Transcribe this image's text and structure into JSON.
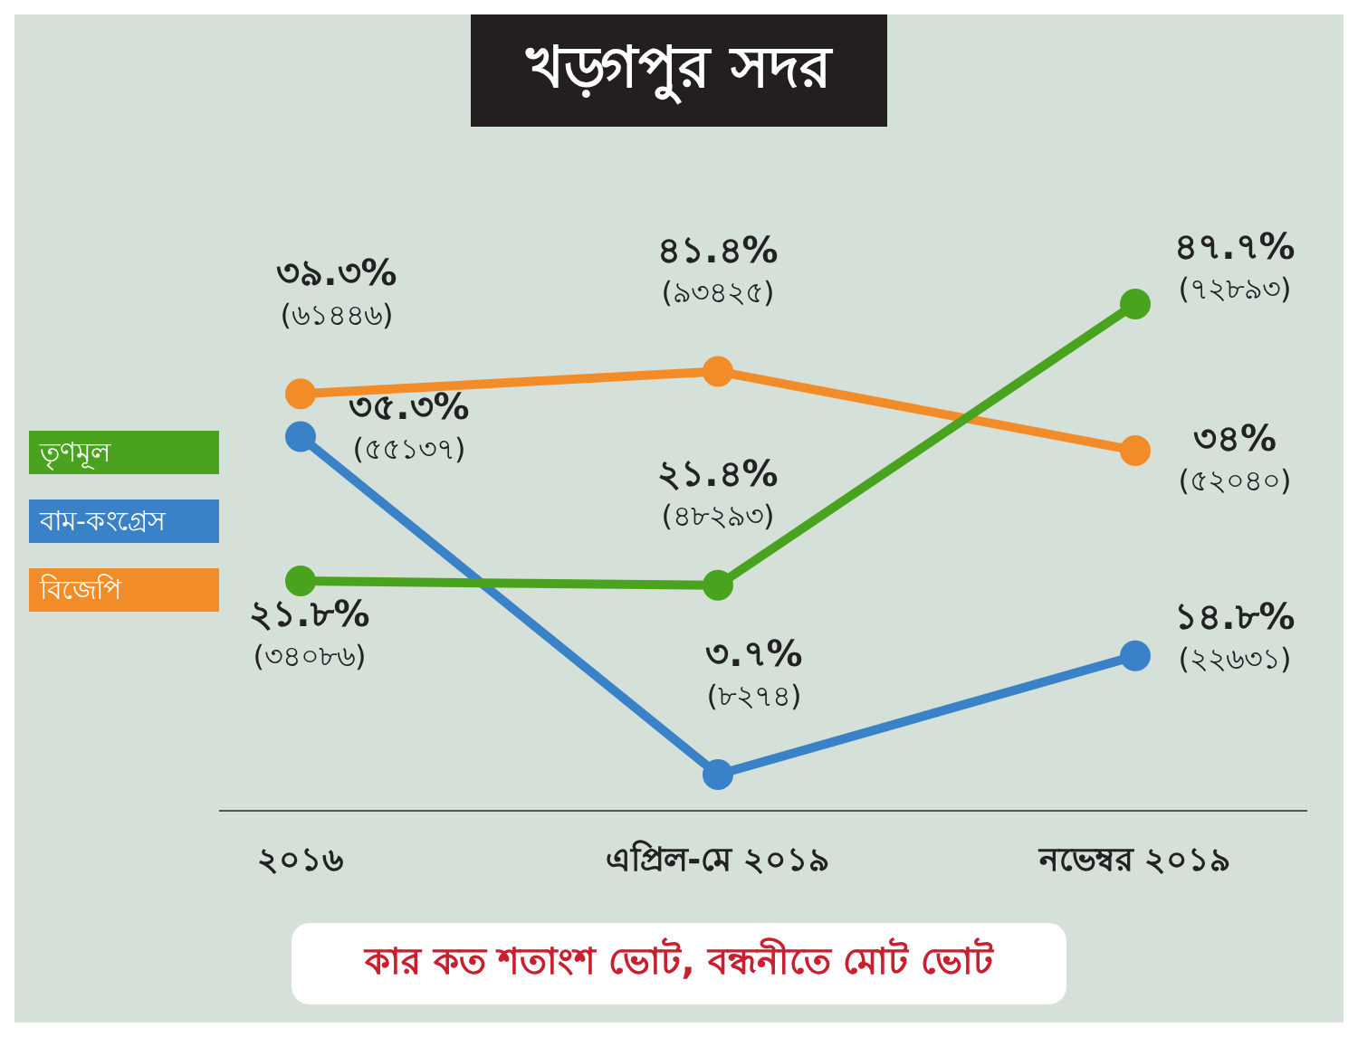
{
  "chart_data": {
    "type": "line",
    "title": "খড়্গপুর সদর",
    "categories": [
      "২০১৬",
      "এপ্রিল-মে ২০১৯",
      "নভেম্বর ২০১৯"
    ],
    "series": [
      {
        "name": "বিজেপি",
        "color": "#f28c28",
        "values": [
          39.3,
          41.4,
          34
        ],
        "value_labels": [
          "৩৯.৩%\n(৬১৪৪৬)",
          "৪১.৪%\n(৯৩৪২৫)",
          "৩৪%\n(৫২০৪০)"
        ]
      },
      {
        "name": "বাম-কংগ্রেস",
        "color": "#3a82c8",
        "values": [
          35.3,
          3.7,
          14.8
        ],
        "value_labels": [
          "৩৫.৩%\n(৫৫১৩৭)",
          "৩.৭%\n(৮২৭৪)",
          "১৪.৮%\n(২২৬৩১)"
        ]
      },
      {
        "name": "তৃণমূল",
        "color": "#4aa31e",
        "values": [
          21.8,
          21.4,
          47.7
        ],
        "value_labels": [
          "২১.৮%\n(৩৪০৮৬)",
          "২১.৪%\n(৪৮২৯৩)",
          "৪৭.৭%\n(৭২৮৯৩)"
        ]
      }
    ],
    "annotations": [
      "কার কত শতাংশ ভোট, বন্ধনীতে মোট ভোট"
    ],
    "legend": "left",
    "marker": "circle",
    "line_style": "solid",
    "grid": false
  }
}
